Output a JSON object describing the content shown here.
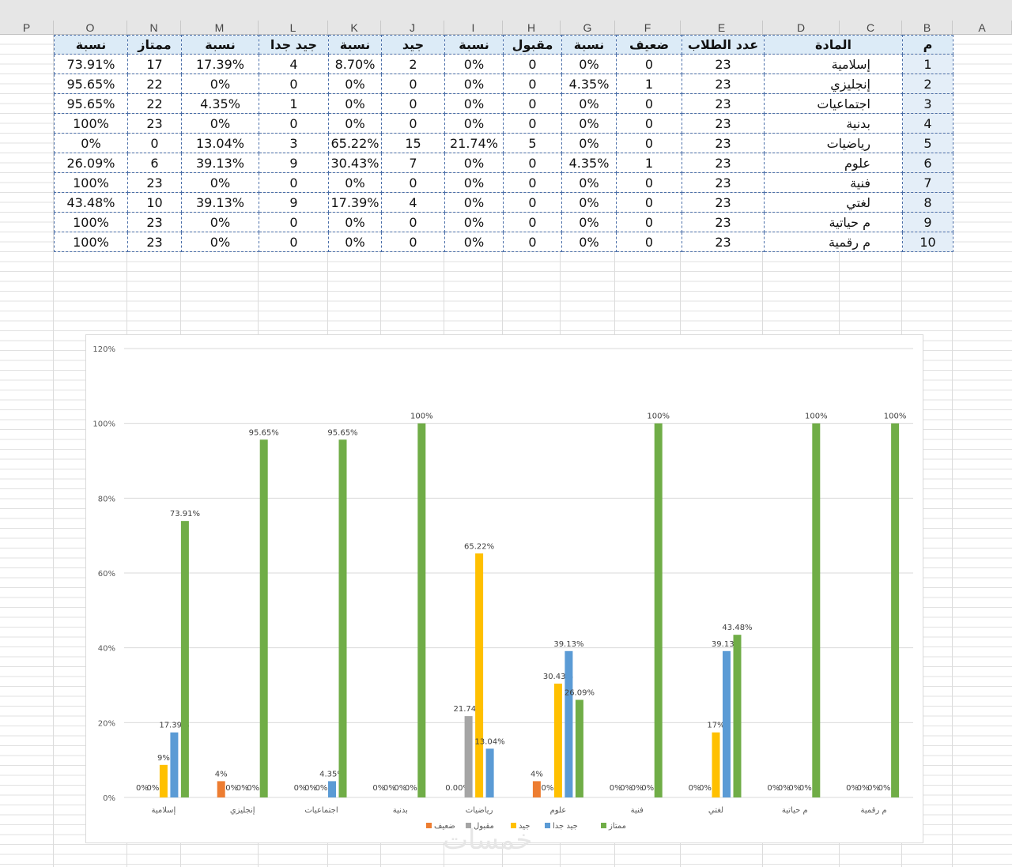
{
  "sheet": {
    "columns": [
      "P",
      "O",
      "N",
      "M",
      "L",
      "K",
      "J",
      "I",
      "H",
      "G",
      "F",
      "E",
      "D",
      "C",
      "B",
      "A"
    ],
    "table_headers": [
      "نسبة",
      "ممتاز",
      "نسبة",
      "جيد جدا",
      "نسبة",
      "جيد",
      "نسبة",
      "مقبول",
      "نسبة",
      "ضعيف",
      "عدد الطلاب",
      "المادة",
      "م"
    ],
    "rows": [
      [
        "73.91%",
        "17",
        "17.39%",
        "4",
        "8.70%",
        "2",
        "0%",
        "0",
        "0%",
        "0",
        "23",
        "إسلامية",
        "1"
      ],
      [
        "95.65%",
        "22",
        "0%",
        "0",
        "0%",
        "0",
        "0%",
        "0",
        "4.35%",
        "1",
        "23",
        "إنجليزي",
        "2"
      ],
      [
        "95.65%",
        "22",
        "4.35%",
        "1",
        "0%",
        "0",
        "0%",
        "0",
        "0%",
        "0",
        "23",
        "اجتماعيات",
        "3"
      ],
      [
        "100%",
        "23",
        "0%",
        "0",
        "0%",
        "0",
        "0%",
        "0",
        "0%",
        "0",
        "23",
        "بدنية",
        "4"
      ],
      [
        "0%",
        "0",
        "13.04%",
        "3",
        "65.22%",
        "15",
        "21.74%",
        "5",
        "0%",
        "0",
        "23",
        "رياضيات",
        "5"
      ],
      [
        "26.09%",
        "6",
        "39.13%",
        "9",
        "30.43%",
        "7",
        "0%",
        "0",
        "4.35%",
        "1",
        "23",
        "علوم",
        "6"
      ],
      [
        "100%",
        "23",
        "0%",
        "0",
        "0%",
        "0",
        "0%",
        "0",
        "0%",
        "0",
        "23",
        "فنية",
        "7"
      ],
      [
        "43.48%",
        "10",
        "39.13%",
        "9",
        "17.39%",
        "4",
        "0%",
        "0",
        "0%",
        "0",
        "23",
        "لغتي",
        "8"
      ],
      [
        "100%",
        "23",
        "0%",
        "0",
        "0%",
        "0",
        "0%",
        "0",
        "0%",
        "0",
        "23",
        "م حياتية",
        "9"
      ],
      [
        "100%",
        "23",
        "0%",
        "0",
        "0%",
        "0",
        "0%",
        "0",
        "0%",
        "0",
        "23",
        "م رقمية",
        "10"
      ]
    ]
  },
  "chart_data": {
    "type": "bar",
    "categories": [
      "إسلامية",
      "إنجليزي",
      "اجتماعيات",
      "بدنية",
      "رياضيات",
      "علوم",
      "فنية",
      "لغتي",
      "م حياتية",
      "م رقمية"
    ],
    "series": [
      {
        "name": "ضعيف",
        "color": "#ED7D31",
        "values": [
          0,
          4.35,
          0,
          0,
          0,
          4.35,
          0,
          0,
          0,
          0
        ],
        "labels": [
          "0%",
          "4%",
          "0%",
          "0%",
          "0.00%",
          "4%",
          "0%",
          "0%",
          "0%",
          "0%"
        ]
      },
      {
        "name": "مقبول",
        "color": "#A5A5A5",
        "values": [
          0,
          0,
          0,
          0,
          21.74,
          0,
          0,
          0,
          0,
          0
        ],
        "labels": [
          "0%",
          "0%",
          "0%",
          "0%",
          "21.74%",
          "0%",
          "0%",
          "0%",
          "0%",
          "0%"
        ]
      },
      {
        "name": "جيد",
        "color": "#FFC000",
        "values": [
          8.7,
          0,
          0,
          0,
          65.22,
          30.43,
          0,
          17.39,
          0,
          0
        ],
        "labels": [
          "9%",
          "0%",
          "0%",
          "0%",
          "65.22%",
          "30.43%",
          "0%",
          "17%",
          "0%",
          "0%"
        ]
      },
      {
        "name": "جيد جدا",
        "color": "#5B9BD5",
        "values": [
          17.39,
          0,
          4.35,
          0,
          13.04,
          39.13,
          0,
          39.13,
          0,
          0
        ],
        "labels": [
          "17.39%",
          "0%",
          "4.35%",
          "0%",
          "13.04%",
          "39.13%",
          "0%",
          "39.13%",
          "0%",
          "0%"
        ]
      },
      {
        "name": "ممتاز",
        "color": "#70AD47",
        "values": [
          73.91,
          95.65,
          95.65,
          100,
          0,
          26.09,
          100,
          43.48,
          100,
          100
        ],
        "labels": [
          "73.91%",
          "95.65%",
          "95.65%",
          "100%",
          "",
          "26.09%",
          "100%",
          "43.48%",
          "100%",
          "100%"
        ]
      }
    ],
    "ylim": [
      0,
      120
    ],
    "yticks": [
      0,
      20,
      40,
      60,
      80,
      100,
      120
    ],
    "ytick_labels": [
      "0%",
      "20%",
      "40%",
      "60%",
      "80%",
      "100%",
      "120%"
    ],
    "grid": true,
    "legend_position": "bottom"
  },
  "watermark": "خمسات"
}
